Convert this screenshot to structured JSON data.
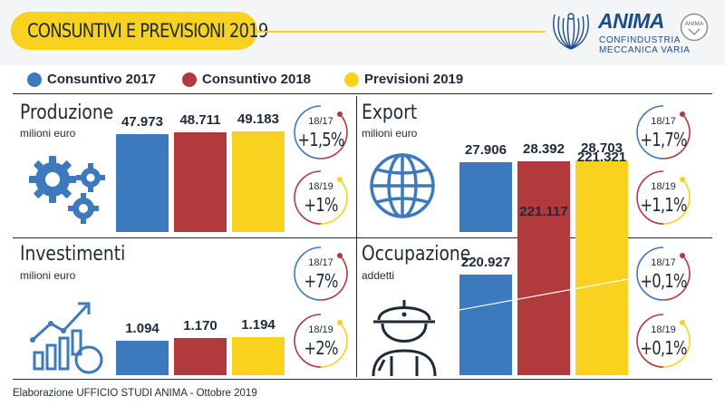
{
  "header": {
    "title": "CONSUNTIVI E PREVISIONI 2019",
    "logo_name": "ANIMA",
    "logo_sub_1": "CONFINDUSTRIA",
    "logo_sub_2": "MECCANICA VARIA",
    "badge_text": "ANIMA"
  },
  "colors": {
    "blue": "#3d79bd",
    "red": "#b23a3d",
    "yellow": "#f8d21e",
    "dark": "#1e2a3a"
  },
  "legend": [
    {
      "label": "Consuntivo 2017",
      "color": "#3d79bd"
    },
    {
      "label": "Consuntivo 2018",
      "color": "#b23a3d"
    },
    {
      "label": "Previsioni 2019",
      "color": "#f8d21e"
    }
  ],
  "chart_data": [
    {
      "type": "bar",
      "title": "Produzione",
      "subtitle": "milioni euro",
      "icon": "gears-icon",
      "categories": [
        "Consuntivo 2017",
        "Consuntivo 2018",
        "Previsioni 2019"
      ],
      "values": [
        47973,
        48711,
        49183
      ],
      "value_labels": [
        "47.973",
        "48.711",
        "49.183"
      ],
      "annotations": [
        {
          "period": "18/17",
          "change": "+1,5%"
        },
        {
          "period": "18/19",
          "change": "+1%"
        }
      ]
    },
    {
      "type": "bar",
      "title": "Export",
      "subtitle": "milioni euro",
      "icon": "globe-icon",
      "categories": [
        "Consuntivo 2017",
        "Consuntivo 2018",
        "Previsioni 2019"
      ],
      "values": [
        27906,
        28392,
        28703
      ],
      "value_labels": [
        "27.906",
        "28.392",
        "28.703"
      ],
      "annotations": [
        {
          "period": "18/17",
          "change": "+1,7%"
        },
        {
          "period": "18/19",
          "change": "+1,1%"
        }
      ]
    },
    {
      "type": "bar",
      "title": "Investimenti",
      "subtitle": "milioni euro",
      "icon": "growth-chart-icon",
      "categories": [
        "Consuntivo 2017",
        "Consuntivo 2018",
        "Previsioni 2019"
      ],
      "values": [
        1094,
        1170,
        1194
      ],
      "value_labels": [
        "1.094",
        "1.170",
        "1.194"
      ],
      "annotations": [
        {
          "period": "18/17",
          "change": "+7%"
        },
        {
          "period": "18/19",
          "change": "+2%"
        }
      ]
    },
    {
      "type": "bar",
      "title": "Occupazione",
      "subtitle": "addetti",
      "icon": "worker-icon",
      "categories": [
        "Consuntivo 2017",
        "Consuntivo 2018",
        "Previsioni 2019"
      ],
      "values": [
        220927,
        221117,
        221321
      ],
      "value_labels": [
        "220.927",
        "221.117",
        "221.321"
      ],
      "annotations": [
        {
          "period": "18/17",
          "change": "+0,1%"
        },
        {
          "period": "18/19",
          "change": "+0,1%"
        }
      ]
    }
  ],
  "footer": "Elaborazione UFFICIO STUDI ANIMA - Ottobre 2019"
}
